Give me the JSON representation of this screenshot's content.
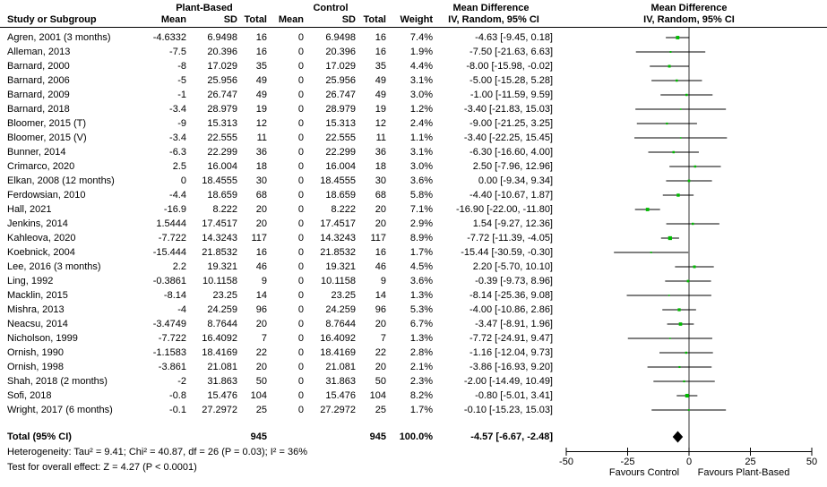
{
  "header": {
    "group1": "Plant-Based",
    "group2": "Control",
    "md_title": "Mean Difference",
    "md_subtitle": "IV, Random, 95% CI",
    "col_study": "Study or Subgroup",
    "col_mean": "Mean",
    "col_sd": "SD",
    "col_total": "Total",
    "col_weight": "Weight"
  },
  "colors": {
    "marker_green": "#00BB00",
    "diamond_black": "#000000",
    "line_black": "#000000",
    "zero_line": "#333333"
  },
  "chart_data": {
    "type": "forest",
    "effect_measure": "Mean Difference IV, Random, 95% CI",
    "x_axis": {
      "min": -50,
      "max": 50,
      "ticks": [
        -50,
        -25,
        0,
        25,
        50
      ],
      "label_left": "Favours Control",
      "label_right": "Favours Plant-Based"
    },
    "studies": [
      {
        "name": "Agren, 2001 (3 months)",
        "pb_mean": -4.6332,
        "pb_sd": 6.9498,
        "pb_total": 16,
        "c_mean": 0,
        "c_sd": 6.9498,
        "c_total": 16,
        "weight_pct": 7.4,
        "md": -4.63,
        "ci_low": -9.45,
        "ci_high": 0.18
      },
      {
        "name": "Alleman, 2013",
        "pb_mean": -7.5,
        "pb_sd": 20.396,
        "pb_total": 16,
        "c_mean": 0,
        "c_sd": 20.396,
        "c_total": 16,
        "weight_pct": 1.9,
        "md": -7.5,
        "ci_low": -21.63,
        "ci_high": 6.63
      },
      {
        "name": "Barnard, 2000",
        "pb_mean": -8,
        "pb_sd": 17.029,
        "pb_total": 35,
        "c_mean": 0,
        "c_sd": 17.029,
        "c_total": 35,
        "weight_pct": 4.4,
        "md": -8.0,
        "ci_low": -15.98,
        "ci_high": -0.02
      },
      {
        "name": "Barnard, 2006",
        "pb_mean": -5,
        "pb_sd": 25.956,
        "pb_total": 49,
        "c_mean": 0,
        "c_sd": 25.956,
        "c_total": 49,
        "weight_pct": 3.1,
        "md": -5.0,
        "ci_low": -15.28,
        "ci_high": 5.28
      },
      {
        "name": "Barnard, 2009",
        "pb_mean": -1,
        "pb_sd": 26.747,
        "pb_total": 49,
        "c_mean": 0,
        "c_sd": 26.747,
        "c_total": 49,
        "weight_pct": 3.0,
        "md": -1.0,
        "ci_low": -11.59,
        "ci_high": 9.59
      },
      {
        "name": "Barnard, 2018",
        "pb_mean": -3.4,
        "pb_sd": 28.979,
        "pb_total": 19,
        "c_mean": 0,
        "c_sd": 28.979,
        "c_total": 19,
        "weight_pct": 1.2,
        "md": -3.4,
        "ci_low": -21.83,
        "ci_high": 15.03
      },
      {
        "name": "Bloomer, 2015 (T)",
        "pb_mean": -9,
        "pb_sd": 15.313,
        "pb_total": 12,
        "c_mean": 0,
        "c_sd": 15.313,
        "c_total": 12,
        "weight_pct": 2.4,
        "md": -9.0,
        "ci_low": -21.25,
        "ci_high": 3.25
      },
      {
        "name": "Bloomer, 2015 (V)",
        "pb_mean": -3.4,
        "pb_sd": 22.555,
        "pb_total": 11,
        "c_mean": 0,
        "c_sd": 22.555,
        "c_total": 11,
        "weight_pct": 1.1,
        "md": -3.4,
        "ci_low": -22.25,
        "ci_high": 15.45
      },
      {
        "name": "Bunner, 2014",
        "pb_mean": -6.3,
        "pb_sd": 22.299,
        "pb_total": 36,
        "c_mean": 0,
        "c_sd": 22.299,
        "c_total": 36,
        "weight_pct": 3.1,
        "md": -6.3,
        "ci_low": -16.6,
        "ci_high": 4.0
      },
      {
        "name": "Crimarco, 2020",
        "pb_mean": 2.5,
        "pb_sd": 16.004,
        "pb_total": 18,
        "c_mean": 0,
        "c_sd": 16.004,
        "c_total": 18,
        "weight_pct": 3.0,
        "md": 2.5,
        "ci_low": -7.96,
        "ci_high": 12.96
      },
      {
        "name": "Elkan, 2008 (12 months)",
        "pb_mean": 0,
        "pb_sd": 18.4555,
        "pb_total": 30,
        "c_mean": 0,
        "c_sd": 18.4555,
        "c_total": 30,
        "weight_pct": 3.6,
        "md": 0.0,
        "ci_low": -9.34,
        "ci_high": 9.34
      },
      {
        "name": "Ferdowsian, 2010",
        "pb_mean": -4.4,
        "pb_sd": 18.659,
        "pb_total": 68,
        "c_mean": 0,
        "c_sd": 18.659,
        "c_total": 68,
        "weight_pct": 5.8,
        "md": -4.4,
        "ci_low": -10.67,
        "ci_high": 1.87
      },
      {
        "name": "Hall, 2021",
        "pb_mean": -16.9,
        "pb_sd": 8.222,
        "pb_total": 20,
        "c_mean": 0,
        "c_sd": 8.222,
        "c_total": 20,
        "weight_pct": 7.1,
        "md": -16.9,
        "ci_low": -22.0,
        "ci_high": -11.8
      },
      {
        "name": "Jenkins, 2014",
        "pb_mean": 1.5444,
        "pb_sd": 17.4517,
        "pb_total": 20,
        "c_mean": 0,
        "c_sd": 17.4517,
        "c_total": 20,
        "weight_pct": 2.9,
        "md": 1.54,
        "ci_low": -9.27,
        "ci_high": 12.36
      },
      {
        "name": "Kahleova, 2020",
        "pb_mean": -7.722,
        "pb_sd": 14.3243,
        "pb_total": 117,
        "c_mean": 0,
        "c_sd": 14.3243,
        "c_total": 117,
        "weight_pct": 8.9,
        "md": -7.72,
        "ci_low": -11.39,
        "ci_high": -4.05
      },
      {
        "name": "Koebnick, 2004",
        "pb_mean": -15.444,
        "pb_sd": 21.8532,
        "pb_total": 16,
        "c_mean": 0,
        "c_sd": 21.8532,
        "c_total": 16,
        "weight_pct": 1.7,
        "md": -15.44,
        "ci_low": -30.59,
        "ci_high": -0.3
      },
      {
        "name": "Lee, 2016 (3 months)",
        "pb_mean": 2.2,
        "pb_sd": 19.321,
        "pb_total": 46,
        "c_mean": 0,
        "c_sd": 19.321,
        "c_total": 46,
        "weight_pct": 4.5,
        "md": 2.2,
        "ci_low": -5.7,
        "ci_high": 10.1
      },
      {
        "name": "Ling, 1992",
        "pb_mean": -0.3861,
        "pb_sd": 10.1158,
        "pb_total": 9,
        "c_mean": 0,
        "c_sd": 10.1158,
        "c_total": 9,
        "weight_pct": 3.6,
        "md": -0.39,
        "ci_low": -9.73,
        "ci_high": 8.96
      },
      {
        "name": "Macklin, 2015",
        "pb_mean": -8.14,
        "pb_sd": 23.25,
        "pb_total": 14,
        "c_mean": 0,
        "c_sd": 23.25,
        "c_total": 14,
        "weight_pct": 1.3,
        "md": -8.14,
        "ci_low": -25.36,
        "ci_high": 9.08
      },
      {
        "name": "Mishra, 2013",
        "pb_mean": -4,
        "pb_sd": 24.259,
        "pb_total": 96,
        "c_mean": 0,
        "c_sd": 24.259,
        "c_total": 96,
        "weight_pct": 5.3,
        "md": -4.0,
        "ci_low": -10.86,
        "ci_high": 2.86
      },
      {
        "name": "Neacsu, 2014",
        "pb_mean": -3.4749,
        "pb_sd": 8.7644,
        "pb_total": 20,
        "c_mean": 0,
        "c_sd": 8.7644,
        "c_total": 20,
        "weight_pct": 6.7,
        "md": -3.47,
        "ci_low": -8.91,
        "ci_high": 1.96
      },
      {
        "name": "Nicholson, 1999",
        "pb_mean": -7.722,
        "pb_sd": 16.4092,
        "pb_total": 7,
        "c_mean": 0,
        "c_sd": 16.4092,
        "c_total": 7,
        "weight_pct": 1.3,
        "md": -7.72,
        "ci_low": -24.91,
        "ci_high": 9.47
      },
      {
        "name": "Ornish, 1990",
        "pb_mean": -1.1583,
        "pb_sd": 18.4169,
        "pb_total": 22,
        "c_mean": 0,
        "c_sd": 18.4169,
        "c_total": 22,
        "weight_pct": 2.8,
        "md": -1.16,
        "ci_low": -12.04,
        "ci_high": 9.73
      },
      {
        "name": "Ornish, 1998",
        "pb_mean": -3.861,
        "pb_sd": 21.081,
        "pb_total": 20,
        "c_mean": 0,
        "c_sd": 21.081,
        "c_total": 20,
        "weight_pct": 2.1,
        "md": -3.86,
        "ci_low": -16.93,
        "ci_high": 9.2
      },
      {
        "name": "Shah, 2018 (2 months)",
        "pb_mean": -2,
        "pb_sd": 31.863,
        "pb_total": 50,
        "c_mean": 0,
        "c_sd": 31.863,
        "c_total": 50,
        "weight_pct": 2.3,
        "md": -2.0,
        "ci_low": -14.49,
        "ci_high": 10.49
      },
      {
        "name": "Sofi, 2018",
        "pb_mean": -0.8,
        "pb_sd": 15.476,
        "pb_total": 104,
        "c_mean": 0,
        "c_sd": 15.476,
        "c_total": 104,
        "weight_pct": 8.2,
        "md": -0.8,
        "ci_low": -5.01,
        "ci_high": 3.41
      },
      {
        "name": "Wright, 2017 (6 months)",
        "pb_mean": -0.1,
        "pb_sd": 27.2972,
        "pb_total": 25,
        "c_mean": 0,
        "c_sd": 27.2972,
        "c_total": 25,
        "weight_pct": 1.7,
        "md": -0.1,
        "ci_low": -15.23,
        "ci_high": 15.03
      }
    ],
    "total": {
      "label": "Total (95% CI)",
      "pb_total": 945,
      "c_total": 945,
      "weight_pct": 100.0,
      "md": -4.57,
      "ci_low": -6.67,
      "ci_high": -2.48
    },
    "heterogeneity": "Heterogeneity: Tau² = 9.41; Chi² = 40.87, df = 26 (P = 0.03); I² = 36%",
    "overall_effect": "Test for overall effect: Z = 4.27 (P < 0.0001)"
  }
}
